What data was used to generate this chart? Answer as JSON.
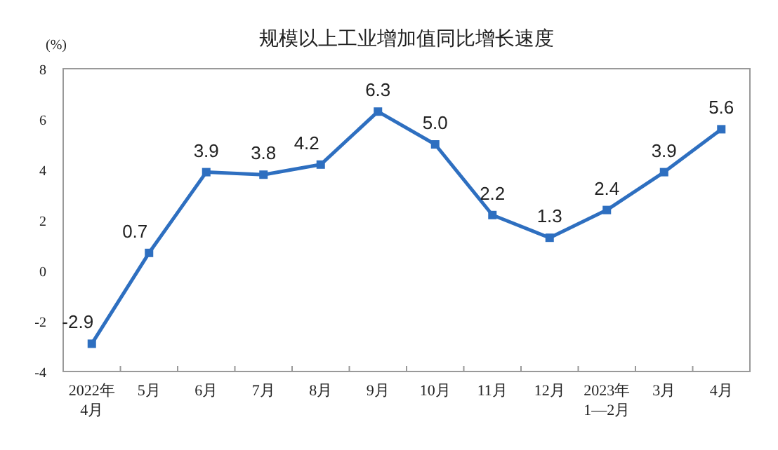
{
  "chart_data": {
    "type": "line",
    "title": "规模以上工业增加值同比增长速度",
    "ylabel": "(%)",
    "categories": [
      "2022年\n4月",
      "5月",
      "6月",
      "7月",
      "8月",
      "9月",
      "10月",
      "11月",
      "12月",
      "2023年\n1—2月",
      "3月",
      "4月"
    ],
    "series": [
      {
        "color": "#2e6fc0",
        "values": [
          -2.9,
          0.7,
          3.9,
          3.8,
          4.2,
          6.3,
          5.0,
          2.2,
          1.3,
          2.4,
          3.9,
          5.6
        ],
        "value_labels": [
          "-2.9",
          "0.7",
          "3.9",
          "3.8",
          "4.2",
          "6.3",
          "5.0",
          "2.2",
          "1.3",
          "2.4",
          "3.9",
          "5.6"
        ]
      }
    ],
    "ylim": [
      -4,
      8
    ],
    "yticks": [
      -4,
      -2,
      0,
      2,
      4,
      6,
      8
    ],
    "marker": "square",
    "line_style": "solid",
    "grid": false
  }
}
